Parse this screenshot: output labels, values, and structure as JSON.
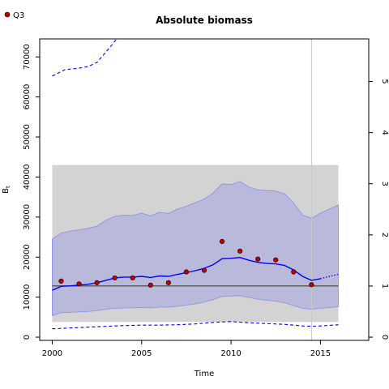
{
  "chart_data": {
    "type": "line",
    "title": "Absolute biomass",
    "xlabel": "Time",
    "ylabel": "B",
    "ylabel_sub": "t",
    "xlim": [
      1999.3,
      2017.7
    ],
    "ylim": [
      -800,
      74500
    ],
    "right_ylim": [
      -0.0626,
      5.833
    ],
    "x_ticks": [
      2000,
      2005,
      2010,
      2015
    ],
    "y_ticks": [
      0,
      10000,
      20000,
      30000,
      40000,
      50000,
      60000,
      70000
    ],
    "right_y_ticks": [
      0,
      1,
      2,
      3,
      4,
      5
    ],
    "legend": {
      "position": "top-left",
      "entries": [
        "Q3"
      ]
    },
    "colors": {
      "line": "#0000ff",
      "band": "#b9b9dc",
      "band_edge": "#8c8ce6",
      "panel": "#d3d3d3",
      "points": "#c00000",
      "reference": "#555555",
      "vline": "#c8c8c8"
    },
    "panel": {
      "x": [
        2000,
        2016
      ],
      "y": [
        3800,
        43000
      ]
    },
    "reference_line": 12800,
    "vertical_line": 2014.5,
    "series": {
      "estimate_x": [
        2000,
        2000.5,
        2001,
        2001.5,
        2002,
        2002.5,
        2003,
        2003.5,
        2004,
        2004.5,
        2005,
        2005.5,
        2006,
        2006.5,
        2007,
        2007.5,
        2008,
        2008.5,
        2009,
        2009.5,
        2010,
        2010.5,
        2011,
        2011.5,
        2012,
        2012.5,
        2013,
        2013.5,
        2014,
        2014.5,
        2015
      ],
      "estimate_y": [
        11700,
        12700,
        12800,
        13000,
        13200,
        13600,
        14200,
        14800,
        15000,
        15000,
        15200,
        14900,
        15300,
        15200,
        15700,
        16100,
        16600,
        17200,
        18100,
        19600,
        19700,
        19900,
        19200,
        18700,
        18400,
        18300,
        17900,
        16800,
        15200,
        14200,
        14600
      ],
      "forecast_x": [
        2015,
        2015.5,
        2016
      ],
      "forecast_y": [
        14600,
        15200,
        15700
      ],
      "ci_x": [
        2000,
        2000.5,
        2001,
        2001.5,
        2002,
        2002.5,
        2003,
        2003.5,
        2004,
        2004.5,
        2005,
        2005.5,
        2006,
        2006.5,
        2007,
        2007.5,
        2008,
        2008.5,
        2009,
        2009.5,
        2010,
        2010.5,
        2011,
        2011.5,
        2012,
        2012.5,
        2013,
        2013.5,
        2014,
        2014.5,
        2015,
        2015.5,
        2016
      ],
      "ci_upper": [
        24500,
        26000,
        26500,
        26800,
        27200,
        27700,
        29200,
        30200,
        30500,
        30400,
        31000,
        30300,
        31200,
        30900,
        32000,
        32700,
        33600,
        34500,
        36000,
        38300,
        38100,
        38900,
        37500,
        36800,
        36600,
        36500,
        35800,
        33500,
        30500,
        29700,
        31000,
        32000,
        33000
      ],
      "ci_lower": [
        5400,
        6100,
        6200,
        6300,
        6400,
        6600,
        7000,
        7200,
        7300,
        7300,
        7400,
        7300,
        7500,
        7500,
        7700,
        8000,
        8300,
        8800,
        9400,
        10200,
        10300,
        10400,
        9900,
        9500,
        9200,
        9000,
        8600,
        7900,
        7200,
        7000,
        7200,
        7400,
        7600
      ],
      "outer_upper_x": [
        2000,
        2000.7,
        2001.5,
        2002,
        2002.5,
        2003,
        2003.3,
        2003.6
      ],
      "outer_upper_y": [
        65200,
        66800,
        67200,
        67600,
        68600,
        71200,
        72800,
        74500
      ],
      "outer_lower_x": [
        2000,
        2001,
        2002,
        2003,
        2004,
        2005,
        2006,
        2007,
        2008,
        2009,
        2010,
        2011,
        2012,
        2013,
        2014,
        2014.5,
        2015,
        2016
      ],
      "outer_lower_y": [
        2100,
        2300,
        2500,
        2700,
        2900,
        3000,
        3000,
        3100,
        3300,
        3700,
        3900,
        3600,
        3400,
        3200,
        2800,
        2700,
        2800,
        3100
      ],
      "points_x": [
        2000.5,
        2001.5,
        2002.5,
        2003.5,
        2004.5,
        2005.5,
        2006.5,
        2007.5,
        2008.5,
        2009.5,
        2010.5,
        2011.5,
        2012.5,
        2013.5,
        2014.5
      ],
      "points_y": [
        14000,
        13300,
        13600,
        14800,
        14800,
        13000,
        13600,
        16300,
        16700,
        23900,
        21500,
        19500,
        19300,
        16300,
        13100
      ]
    }
  }
}
